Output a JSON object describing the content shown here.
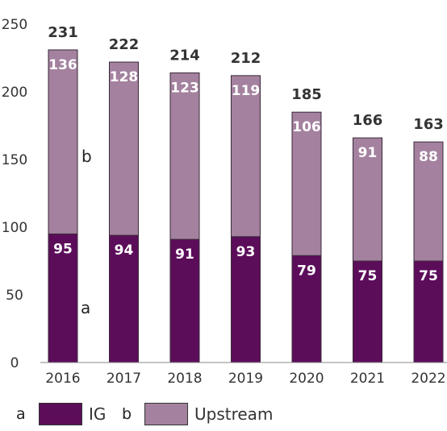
{
  "chart_data": {
    "type": "bar",
    "stacked": true,
    "categories": [
      "2016",
      "2017",
      "2018",
      "2019",
      "2020",
      "2021",
      "2022"
    ],
    "series": [
      {
        "name": "IG",
        "letter": "a",
        "color": "#5c0d5a",
        "values": [
          95,
          94,
          91,
          93,
          79,
          75,
          75
        ]
      },
      {
        "name": "Upstream",
        "letter": "b",
        "color": "#a4819f",
        "values": [
          136,
          128,
          123,
          119,
          106,
          91,
          88
        ]
      }
    ],
    "totals": [
      231,
      222,
      214,
      212,
      185,
      166,
      163
    ],
    "yticks": [
      0,
      50,
      100,
      150,
      200,
      250
    ],
    "ylim": [
      0,
      250
    ],
    "grid": false,
    "legend_position": "bottom-left",
    "series_annotations": {
      "a": "a",
      "b": "b"
    }
  }
}
